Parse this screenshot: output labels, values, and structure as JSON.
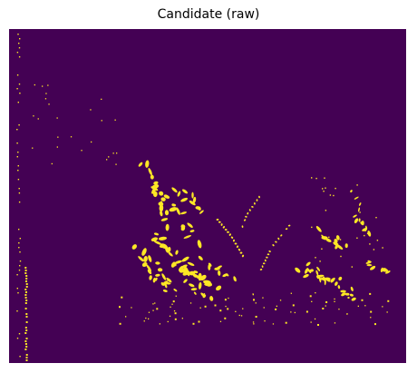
{
  "title": "Candidate (raw)",
  "colors": {
    "background": "#440154",
    "foreground": "#fde725"
  },
  "image": {
    "kind": "binary-mask",
    "subject": "plant-leaves-and-stems"
  }
}
